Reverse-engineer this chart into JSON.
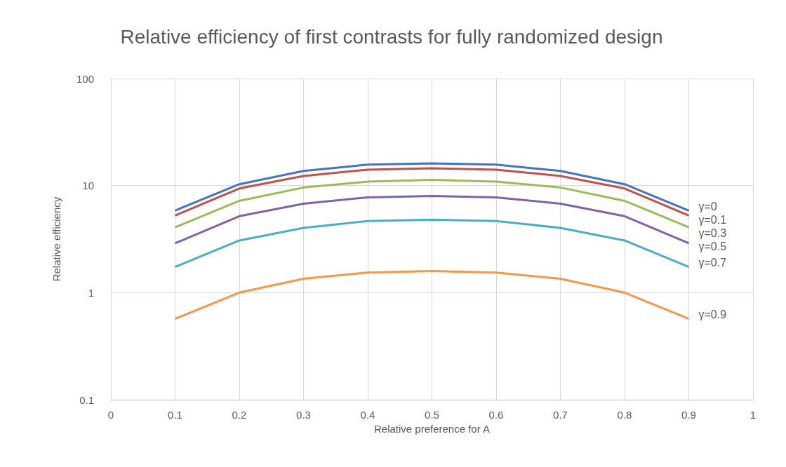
{
  "chart_data": {
    "type": "line",
    "title": "Relative efficiency of first contrasts for fully randomized design",
    "xlabel": "Relative preference for A",
    "ylabel": "Relative efficiency",
    "x": [
      0.1,
      0.2,
      0.3,
      0.4,
      0.5,
      0.6,
      0.7,
      0.8,
      0.9
    ],
    "series": [
      {
        "name": "γ=0",
        "color": "#4472c4",
        "values": [
          5.84,
          10.3,
          13.7,
          15.7,
          16.1,
          15.7,
          13.7,
          10.3,
          5.84
        ]
      },
      {
        "name": "γ=0.1",
        "color": "#c0504d",
        "values": [
          5.26,
          9.4,
          12.3,
          14.1,
          14.5,
          14.1,
          12.3,
          9.4,
          5.26
        ]
      },
      {
        "name": "γ=0.3",
        "color": "#9bbb59",
        "values": [
          4.08,
          7.2,
          9.6,
          10.9,
          11.3,
          10.9,
          9.6,
          7.2,
          4.08
        ]
      },
      {
        "name": "γ=0.5",
        "color": "#8064a2",
        "values": [
          2.89,
          5.18,
          6.78,
          7.76,
          8.0,
          7.76,
          6.78,
          5.18,
          2.89
        ]
      },
      {
        "name": "γ=0.7",
        "color": "#4bacc6",
        "values": [
          1.74,
          3.07,
          4.02,
          4.67,
          4.81,
          4.67,
          4.02,
          3.07,
          1.74
        ]
      },
      {
        "name": "γ=0.9",
        "color": "#f79646",
        "values": [
          0.57,
          1.0,
          1.35,
          1.54,
          1.59,
          1.54,
          1.35,
          1.0,
          0.57
        ]
      }
    ],
    "xlim": [
      0,
      1
    ],
    "xticks": [
      0,
      0.1,
      0.2,
      0.3,
      0.4,
      0.5,
      0.6,
      0.7,
      0.8,
      0.9,
      1
    ],
    "ylim": [
      0.1,
      100
    ],
    "yticks": [
      0.1,
      1,
      10,
      100
    ],
    "log": "y",
    "grid": true,
    "legend": false,
    "marker": "none",
    "line_style": "solid"
  }
}
